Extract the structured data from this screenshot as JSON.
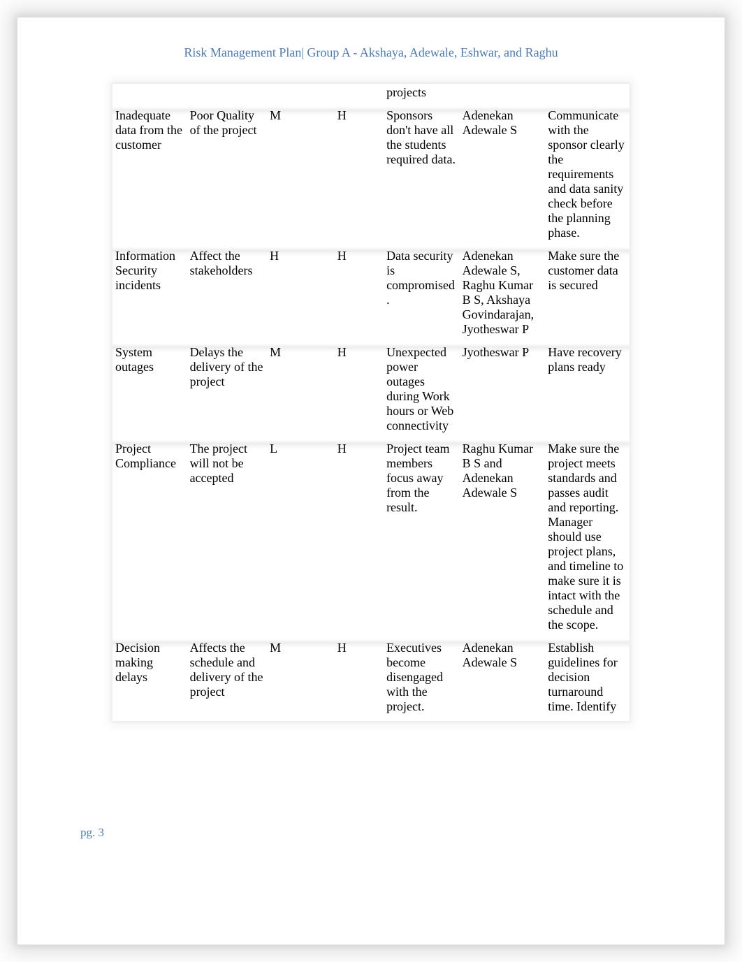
{
  "colors": {
    "header_text": "#4e7ab5",
    "footer_text": "#4e7ab5",
    "body_text": "#000000",
    "page_bg": "#ffffff"
  },
  "header": {
    "text": "Risk Management Plan| Group A - Akshaya, Adewale, Eshwar, and Raghu"
  },
  "footer": {
    "text": "pg. 3"
  },
  "table": {
    "continuation_cell": "projects",
    "rows": [
      {
        "risk": "Inadequate data from the customer",
        "impact": "Poor Quality of the project",
        "likelihood": "M",
        "severity": "H",
        "cause": "Sponsors don't have all the students required data.",
        "owner": "Adenekan Adewale S",
        "mitigation": "Communicate with the sponsor clearly the requirements and data sanity check before the planning phase."
      },
      {
        "risk": "Information Security incidents",
        "impact": "Affect the stakeholders",
        "likelihood": "H",
        "severity": "H",
        "cause": "Data security is compromised.",
        "owner": "Adenekan Adewale S, Raghu Kumar B S, Akshaya Govindarajan, Jyotheswar P",
        "mitigation": "Make sure the customer data is secured"
      },
      {
        "risk": "System outages",
        "impact": "Delays the delivery of the project",
        "likelihood": "M",
        "severity": "H",
        "cause": "Unexpected power outages during Work hours or Web connectivity",
        "owner": "Jyotheswar P",
        "mitigation": "Have recovery plans ready"
      },
      {
        "risk": "Project Compliance",
        "impact": "The project will not be accepted",
        "likelihood": "L",
        "severity": "H",
        "cause": "Project team members focus away from the result.",
        "owner": "Raghu Kumar B S and Adenekan Adewale S",
        "mitigation": "Make sure the project meets standards and passes audit and reporting. Manager should use project plans, and timeline to make sure it is intact with the schedule and the scope."
      },
      {
        "risk": "Decision making delays",
        "impact": "Affects the schedule and delivery of the project",
        "likelihood": "M",
        "severity": "H",
        "cause": "Executives become disengaged with the project.",
        "owner": "Adenekan Adewale S",
        "mitigation": "Establish guidelines for decision turnaround time. Identify"
      }
    ]
  }
}
